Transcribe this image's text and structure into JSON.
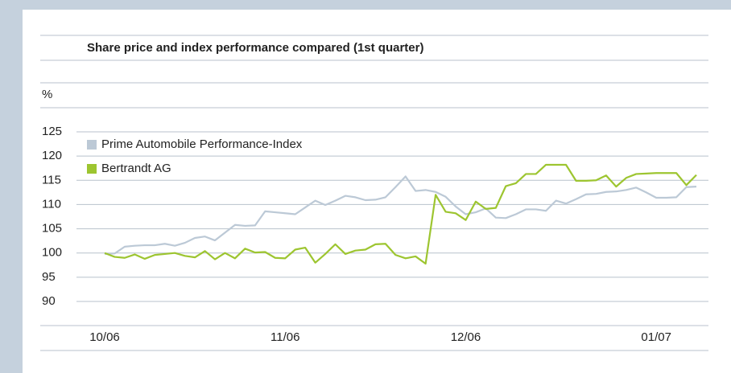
{
  "chart_data": {
    "type": "line",
    "title": "Share price and index performance compared (1st quarter)",
    "y_label": "%",
    "categories": [
      "10/06",
      null,
      null,
      null,
      null,
      null,
      null,
      null,
      null,
      null,
      null,
      null,
      null,
      null,
      null,
      null,
      null,
      null,
      "11/06",
      null,
      null,
      null,
      null,
      null,
      null,
      null,
      null,
      null,
      null,
      null,
      null,
      null,
      null,
      null,
      null,
      null,
      "12/06",
      null,
      null,
      null,
      null,
      null,
      null,
      null,
      null,
      null,
      null,
      null,
      null,
      null,
      null,
      null,
      null,
      null,
      null,
      "01/07",
      null,
      null,
      null,
      null
    ],
    "series": [
      {
        "name": "Prime Automobile Performance-Index",
        "color": "#bcc9d6",
        "values": [
          99.8,
          99.9,
          101.3,
          101.5,
          101.6,
          101.6,
          101.9,
          101.5,
          102.1,
          103.1,
          103.4,
          102.6,
          104.2,
          105.8,
          105.6,
          105.7,
          108.6,
          108.4,
          108.2,
          108.0,
          109.4,
          110.8,
          109.9,
          110.8,
          111.8,
          111.5,
          110.9,
          111.0,
          111.5,
          113.6,
          115.8,
          112.8,
          113.0,
          112.6,
          111.6,
          109.6,
          108.0,
          108.4,
          109.2,
          107.3,
          107.2,
          108.0,
          109.0,
          109.0,
          108.7,
          110.8,
          110.2,
          111.1,
          112.1,
          112.2,
          112.6,
          112.7,
          113.0,
          113.5,
          112.5,
          111.4,
          111.4,
          111.5,
          113.6,
          113.7
        ]
      },
      {
        "name": "Bertrandt AG",
        "color": "#9dc530",
        "values": [
          100,
          99.2,
          99.0,
          99.7,
          98.8,
          99.6,
          99.8,
          100.0,
          99.4,
          99.1,
          100.4,
          98.7,
          100.0,
          98.9,
          100.9,
          100.1,
          100.2,
          99.0,
          98.9,
          100.7,
          101.1,
          98.0,
          99.8,
          101.8,
          99.8,
          100.5,
          100.7,
          101.8,
          101.9,
          99.6,
          98.9,
          99.3,
          97.8,
          112.0,
          108.5,
          108.2,
          106.8,
          110.6,
          109.1,
          109.3,
          113.8,
          114.4,
          116.3,
          116.3,
          118.2,
          118.2,
          118.2,
          114.9,
          114.9,
          115.0,
          116.0,
          113.7,
          115.5,
          116.3,
          116.4,
          116.5,
          116.5,
          116.5,
          114.0,
          116.1
        ]
      }
    ],
    "ylim": [
      90,
      125
    ],
    "yticks": [
      90,
      95,
      100,
      105,
      110,
      115,
      120,
      125
    ],
    "grid": true,
    "legend": "top-left"
  }
}
